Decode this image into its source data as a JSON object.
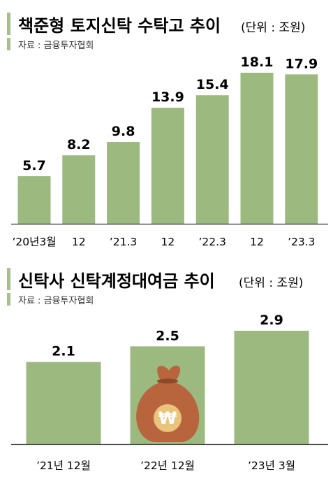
{
  "colors": {
    "bar": "#9cb97f",
    "accent": "#a6bf8c",
    "axis": "#333333",
    "text": "#1a1a1a",
    "bag": "#b8643c"
  },
  "chart_data": [
    {
      "type": "bar",
      "title": "책준형 토지신탁 수탁고 추이",
      "unit": "(단위 : 조원)",
      "source": "자료 : 금융투자협회",
      "categories": [
        "’20년3월",
        "12",
        "’21.3",
        "12",
        "’22.3",
        "12",
        "’23.3"
      ],
      "values": [
        5.7,
        8.2,
        9.8,
        13.9,
        15.4,
        18.1,
        17.9
      ],
      "labels": [
        "5.7",
        "8.2",
        "9.8",
        "13.9",
        "15.4",
        "18.1",
        "17.9"
      ],
      "ylim": [
        0,
        18.1
      ],
      "grid": false,
      "legend": "none"
    },
    {
      "type": "bar",
      "title": "신탁사 신탁계정대여금 추이",
      "unit": "(단위 : 조원)",
      "source": "자료 : 금융투자협회",
      "categories": [
        "’21년 12월",
        "’22년 12월",
        "’23년 3월"
      ],
      "values": [
        2.1,
        2.5,
        2.9
      ],
      "labels": [
        "2.1",
        "2.5",
        "2.9"
      ],
      "ylim": [
        0,
        2.9
      ],
      "grid": false,
      "legend": "none",
      "icon": "money-bag-won-icon",
      "icon_symbol": "₩"
    }
  ]
}
